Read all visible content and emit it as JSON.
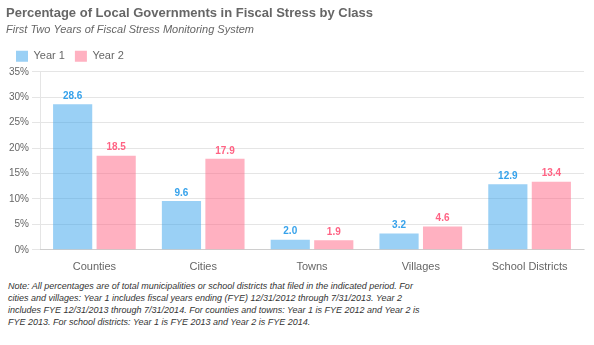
{
  "chart_data": {
    "type": "bar",
    "title": "Percentage of Local Governments in Fiscal Stress by Class",
    "subtitle": "First Two Years of Fiscal Stress Monitoring System",
    "categories": [
      "Counties",
      "Cities",
      "Towns",
      "Villages",
      "School Districts"
    ],
    "series": [
      {
        "name": "Year 1",
        "values": [
          28.6,
          9.6,
          2.0,
          3.2,
          12.9
        ],
        "value_labels": [
          "28.6",
          "9.6",
          "2.0",
          "3.2",
          "12.9"
        ]
      },
      {
        "name": "Year 2",
        "values": [
          18.5,
          17.9,
          1.9,
          4.6,
          13.4
        ],
        "value_labels": [
          "18.5",
          "17.9",
          "1.9",
          "4.6",
          "13.4"
        ]
      }
    ],
    "ylim": [
      0,
      35
    ],
    "yticks": [
      {
        "value": 0,
        "label": "0%"
      },
      {
        "value": 5,
        "label": "5%"
      },
      {
        "value": 10,
        "label": "10%"
      },
      {
        "value": 15,
        "label": "15%"
      },
      {
        "value": 20,
        "label": "20%"
      },
      {
        "value": 25,
        "label": "25%"
      },
      {
        "value": 30,
        "label": "30%"
      },
      {
        "value": 35,
        "label": "35%"
      }
    ],
    "grid": true,
    "legend": "top left",
    "data_labels": true,
    "note": [
      "Note: All percentages are of total municipalities or school districts that filed in the indicated period. For",
      "cities and villages: Year 1 includes fiscal years ending (FYE) 12/31/2012 through 7/31/2013. Year 2",
      "includes FYE 12/31/2013 through 7/31/2014. For counties and towns: Year 1 is FYE 2012 and Year 2 is",
      "FYE 2013. For school districts: Year 1 is FYE 2013 and Year 2 is FYE 2014."
    ]
  }
}
